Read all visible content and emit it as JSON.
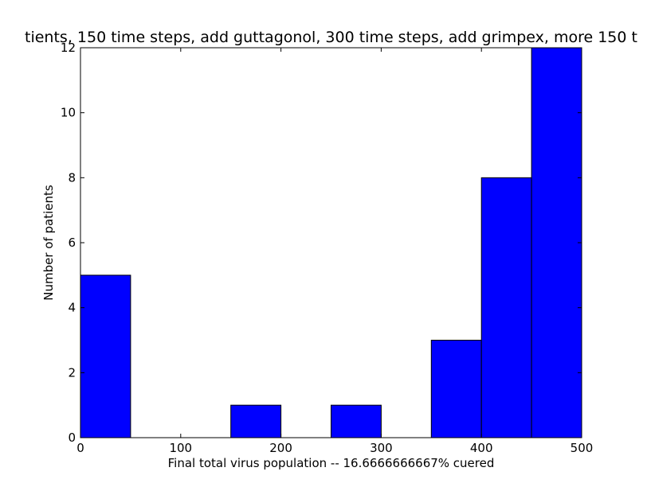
{
  "chart_data": {
    "type": "bar",
    "title": "tients, 150 time steps, add guttagonol, 300 time steps, add grimpex, more 150 t",
    "xlabel": "Final total virus population -- 16.6666666667% cuered",
    "ylabel": "Number of patients",
    "xlim": [
      0,
      500
    ],
    "ylim": [
      0,
      12
    ],
    "xticks": [
      "0",
      "100",
      "200",
      "300",
      "400",
      "500"
    ],
    "yticks": [
      "0",
      "2",
      "4",
      "6",
      "8",
      "10",
      "12"
    ],
    "bins": [
      {
        "start": 0,
        "end": 50,
        "count": 5
      },
      {
        "start": 50,
        "end": 100,
        "count": 0
      },
      {
        "start": 100,
        "end": 150,
        "count": 0
      },
      {
        "start": 150,
        "end": 200,
        "count": 1
      },
      {
        "start": 200,
        "end": 250,
        "count": 0
      },
      {
        "start": 250,
        "end": 300,
        "count": 1
      },
      {
        "start": 300,
        "end": 350,
        "count": 0
      },
      {
        "start": 350,
        "end": 400,
        "count": 3
      },
      {
        "start": 400,
        "end": 450,
        "count": 8
      },
      {
        "start": 450,
        "end": 500,
        "count": 12
      }
    ],
    "bar_color": "#0000ff",
    "grid": false
  }
}
